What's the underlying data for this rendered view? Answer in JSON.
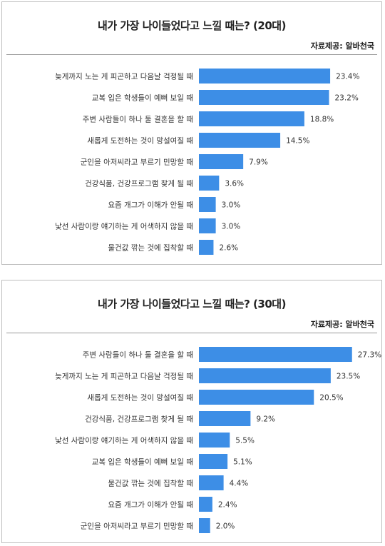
{
  "chart_data": [
    {
      "type": "bar",
      "orientation": "horizontal",
      "title": "내가 가장 나이들었다고 느낄 때는? (20대)",
      "source": "자료제공: 알바천국",
      "color": "#3d8ee6",
      "categories": [
        "늦게까지 노는 게 피곤하고 다음날 걱정될 때",
        "교복 입은 학생들이 예뻐 보일 때",
        "주변 사람들이 하나 둘 결혼을 할 때",
        "새롭게 도전하는 것이 망설여질 때",
        "군인을 아저씨라고 부르기 민망할 때",
        "건강식품, 건강프로그램 찾게 될 때",
        "요즘 개그가 이해가 안될 때",
        "낯선 사람이랑 얘기하는 게 어색하지 않을 때",
        "물건값 깎는 것에 집착할 때"
      ],
      "values": [
        23.4,
        23.2,
        18.8,
        14.5,
        7.9,
        3.6,
        3.0,
        3.0,
        2.6
      ],
      "value_labels": [
        "23.4%",
        "23.2%",
        "18.8%",
        "14.5%",
        "7.9%",
        "3.6%",
        "3.0%",
        "3.0%",
        "2.6%"
      ],
      "xlim": [
        0,
        30
      ]
    },
    {
      "type": "bar",
      "orientation": "horizontal",
      "title": "내가 가장 나이들었다고 느낄 때는? (30대)",
      "source": "자료제공: 알바천국",
      "color": "#3d8ee6",
      "categories": [
        "주변 사람들이 하나 둘 결혼을 할 때",
        "늦게까지 노는 게 피곤하고 다음날 걱정될 때",
        "새롭게 도전하는 것이 망설여질 때",
        "건강식품, 건강프로그램 찾게 될 때",
        "낯선 사람이랑 얘기하는 게 어색하지 않을 때",
        "교복 입은 학생들이 예뻐 보일 때",
        "물건값 깎는 것에 집착할 때",
        "요즘 개그가 이해가 안될 때",
        "군인을 아저씨라고 부르기 민망할 때"
      ],
      "values": [
        27.3,
        23.5,
        20.5,
        9.2,
        5.5,
        5.1,
        4.4,
        2.4,
        2.0
      ],
      "value_labels": [
        "27.3%",
        "23.5%",
        "20.5%",
        "9.2%",
        "5.5%",
        "5.1%",
        "4.4%",
        "2.4%",
        "2.0%"
      ],
      "xlim": [
        0,
        30
      ]
    }
  ]
}
